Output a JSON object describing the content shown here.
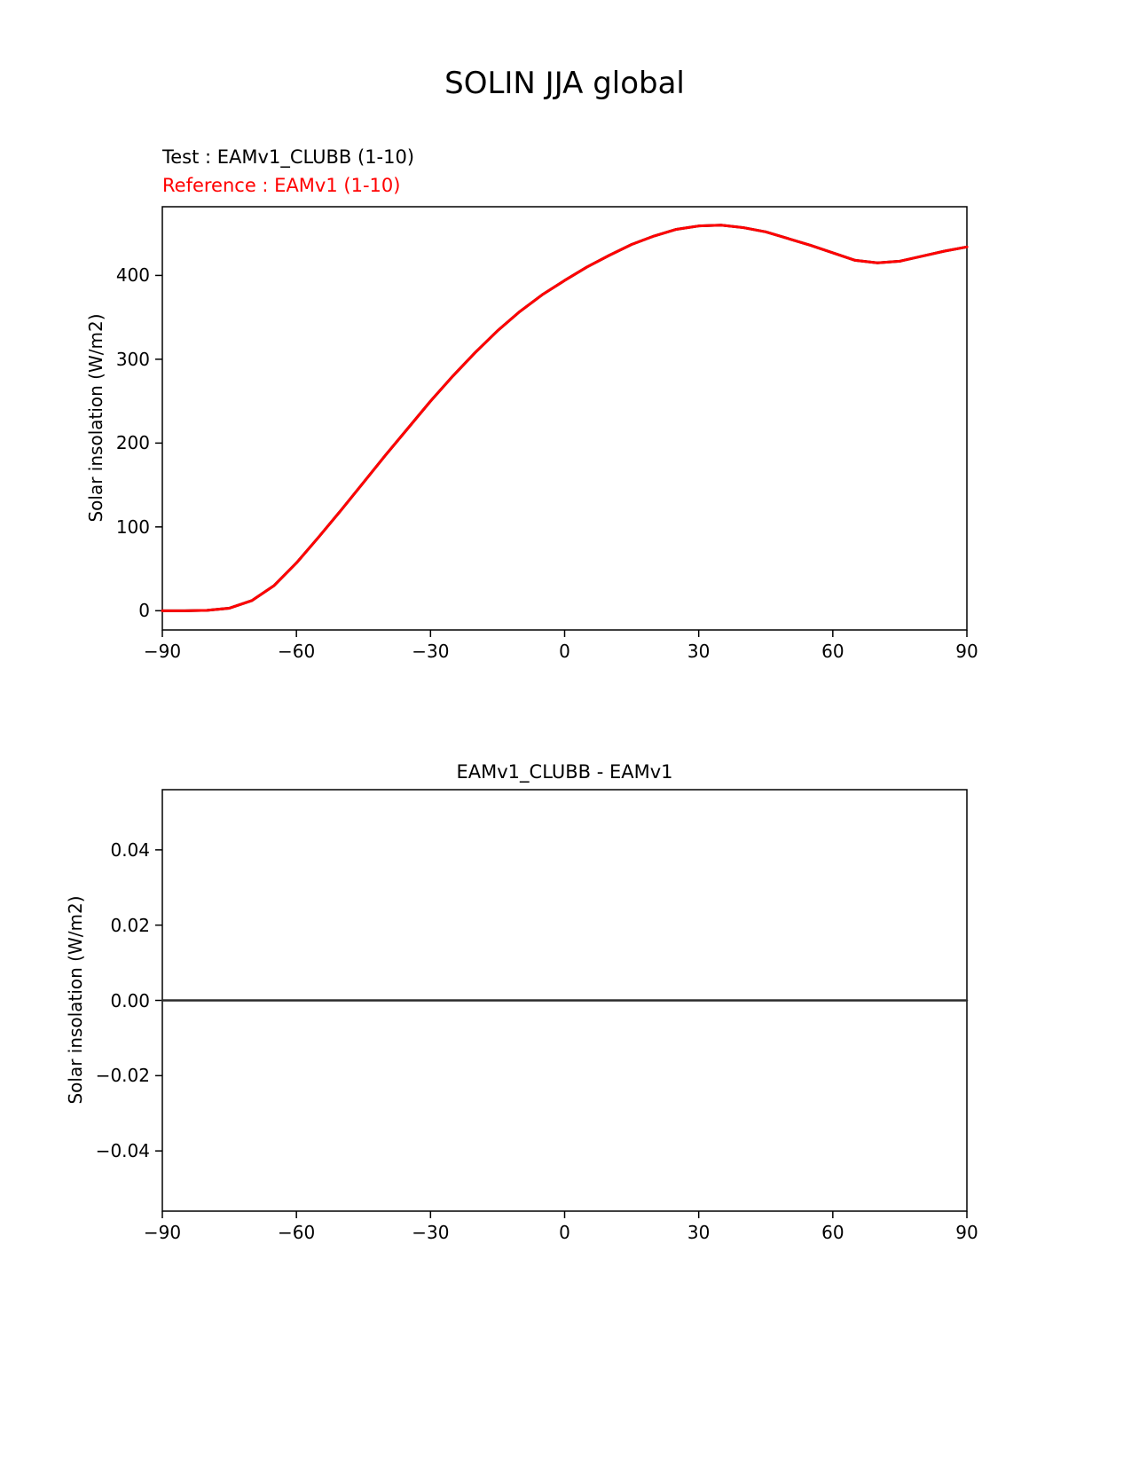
{
  "figure": {
    "title": "SOLIN JJA global",
    "legend": {
      "test": "Test : EAMv1_CLUBB (1-10)",
      "reference": "Reference : EAMv1 (1-10)"
    },
    "colors": {
      "test": "#000000",
      "reference": "#ff0000"
    }
  },
  "chart_data": [
    {
      "type": "line",
      "title": "SOLIN JJA global",
      "xlabel": "",
      "ylabel": "Solar insolation (W/m2)",
      "xlim": [
        -90,
        90
      ],
      "ylim": [
        -22.95,
        481.95
      ],
      "grid": false,
      "x": [
        -90,
        -85,
        -80,
        -75,
        -70,
        -65,
        -60,
        -55,
        -50,
        -45,
        -40,
        -35,
        -30,
        -25,
        -20,
        -15,
        -10,
        -5,
        0,
        5,
        10,
        15,
        20,
        25,
        30,
        35,
        40,
        45,
        50,
        55,
        60,
        65,
        70,
        75,
        80,
        85,
        90
      ],
      "series": [
        {
          "name": "Test : EAMv1_CLUBB (1-10)",
          "color": "#000000",
          "line_width": 3,
          "values": [
            0,
            0,
            0.5,
            3,
            12,
            30,
            57,
            88,
            120,
            153,
            186,
            218,
            250,
            280,
            308,
            334,
            357,
            377,
            394,
            410,
            424,
            437,
            447,
            455,
            459,
            460,
            457,
            452,
            444,
            436,
            427,
            418,
            415,
            417,
            423,
            429,
            434
          ]
        },
        {
          "name": "Reference : EAMv1 (1-10)",
          "color": "#ff0000",
          "line_width": 3,
          "values": [
            0,
            0,
            0.5,
            3,
            12,
            30,
            57,
            88,
            120,
            153,
            186,
            218,
            250,
            280,
            308,
            334,
            357,
            377,
            394,
            410,
            424,
            437,
            447,
            455,
            459,
            460,
            457,
            452,
            444,
            436,
            427,
            418,
            415,
            417,
            423,
            429,
            434
          ]
        }
      ],
      "xticks": {
        "values": [
          -90,
          -60,
          -30,
          0,
          30,
          60,
          90
        ],
        "labels": [
          "−90",
          "−60",
          "−30",
          "0",
          "30",
          "60",
          "90"
        ]
      },
      "yticks": {
        "values": [
          0,
          100,
          200,
          300,
          400
        ],
        "labels": [
          "0",
          "100",
          "200",
          "300",
          "400"
        ]
      }
    },
    {
      "type": "line",
      "title": "EAMv1_CLUBB - EAMv1",
      "xlabel": "",
      "ylabel": "Solar insolation (W/m2)",
      "xlim": [
        -90,
        90
      ],
      "ylim": [
        -0.056,
        0.056
      ],
      "grid": false,
      "x": [
        -90,
        -85,
        -80,
        -75,
        -70,
        -65,
        -60,
        -55,
        -50,
        -45,
        -40,
        -35,
        -30,
        -25,
        -20,
        -15,
        -10,
        -5,
        0,
        5,
        10,
        15,
        20,
        25,
        30,
        35,
        40,
        45,
        50,
        55,
        60,
        65,
        70,
        75,
        80,
        85,
        90
      ],
      "series": [
        {
          "name": "EAMv1_CLUBB - EAMv1",
          "color": "#2b2b2b",
          "line_width": 2.5,
          "values": [
            0,
            0,
            0,
            0,
            0,
            0,
            0,
            0,
            0,
            0,
            0,
            0,
            0,
            0,
            0,
            0,
            0,
            0,
            0,
            0,
            0,
            0,
            0,
            0,
            0,
            0,
            0,
            0,
            0,
            0,
            0,
            0,
            0,
            0,
            0,
            0,
            0
          ]
        }
      ],
      "xticks": {
        "values": [
          -90,
          -60,
          -30,
          0,
          30,
          60,
          90
        ],
        "labels": [
          "−90",
          "−60",
          "−30",
          "0",
          "30",
          "60",
          "90"
        ]
      },
      "yticks": {
        "values": [
          -0.04,
          -0.02,
          0,
          0.02,
          0.04
        ],
        "labels": [
          "−0.04",
          "−0.02",
          "0.00",
          "0.02",
          "0.04"
        ]
      }
    }
  ]
}
